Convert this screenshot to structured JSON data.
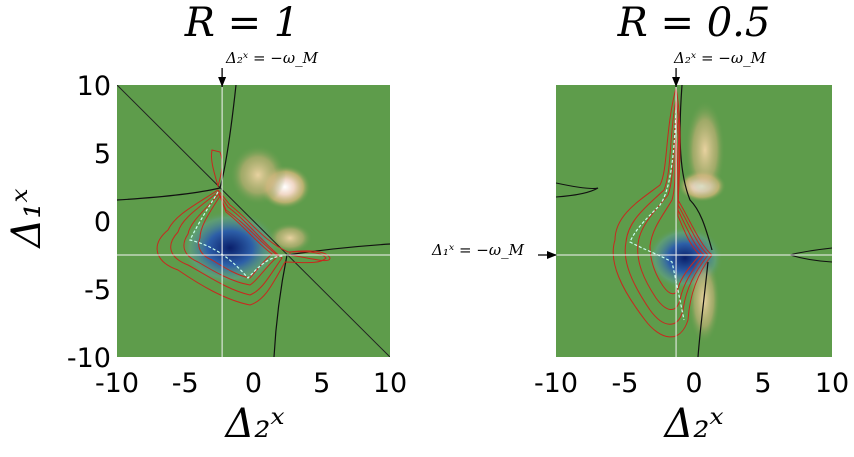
{
  "chart_data": [
    {
      "type": "heatmap",
      "title": "R = 1",
      "xlabel": "Δ₂ˣ",
      "ylabel": "Δ₁ˣ",
      "xlim": [
        -10,
        10
      ],
      "ylim": [
        -10,
        10
      ],
      "xticks": [
        "-10",
        "-5",
        "0",
        "5",
        "10"
      ],
      "yticks": [
        "10",
        "5",
        "0",
        "-5",
        "-10"
      ],
      "annotations": [
        "Δ₂ˣ = −ω_M"
      ],
      "marker_x": -2.3,
      "marker_y": -2.5,
      "background_color": "#5e9c4b",
      "colors": {
        "negative": "#0a2a7a",
        "positive": "#f5eee6",
        "contour": "#c8281e"
      }
    },
    {
      "type": "heatmap",
      "title": "R = 0.5",
      "xlabel": "Δ₂ˣ",
      "ylabel": "",
      "xlim": [
        -10,
        10
      ],
      "ylim": [
        -10,
        10
      ],
      "xticks": [
        "-10",
        "-5",
        "0",
        "5",
        "10"
      ],
      "yticks": [],
      "annotations": [
        "Δ₂ˣ = −ω_M",
        "Δ₁ˣ = −ω_M"
      ],
      "marker_x": -1.3,
      "marker_y": -2.5,
      "background_color": "#5e9c4b",
      "colors": {
        "negative": "#0a2a7a",
        "positive": "#f5eee6",
        "contour": "#c8281e"
      }
    }
  ]
}
